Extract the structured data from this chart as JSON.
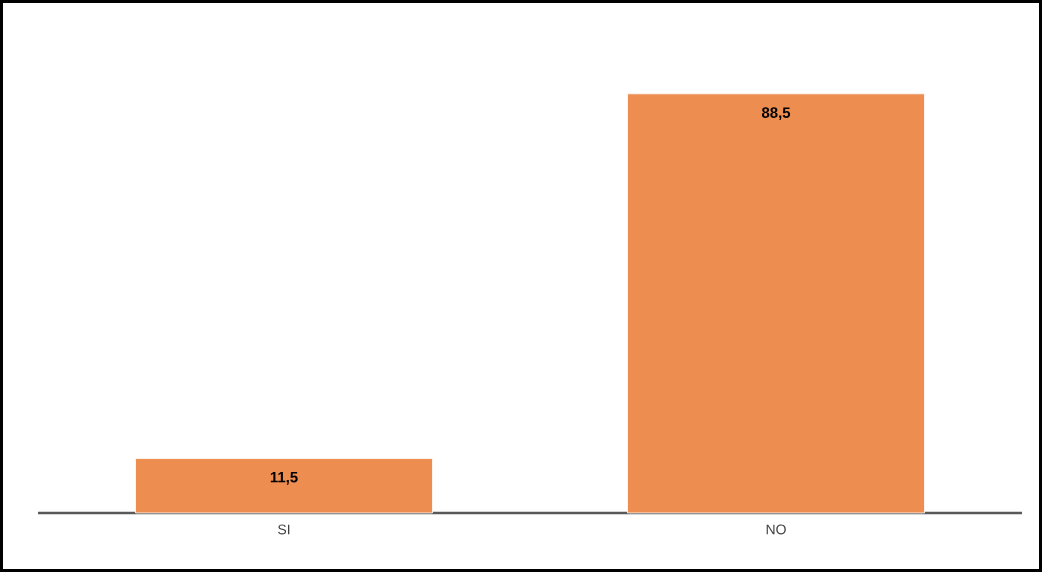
{
  "chart_data": {
    "type": "bar",
    "categories": [
      "SI",
      "NO"
    ],
    "values": [
      11.5,
      88.5
    ],
    "value_labels": [
      "11,5",
      "88,5"
    ],
    "color": "#ed8d4f"
  }
}
